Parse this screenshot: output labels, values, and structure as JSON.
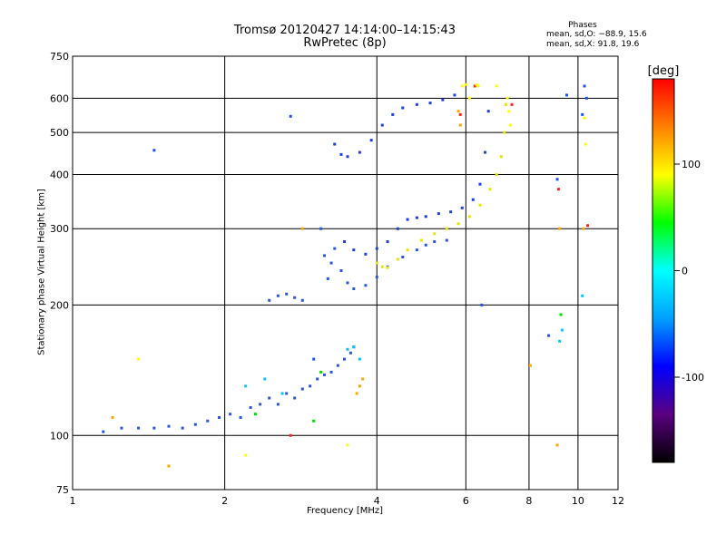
{
  "header": {
    "title_line1": "Tromsø 20120427 14:14:00–14:15:43",
    "title_line2": "RwPretec (8p)"
  },
  "phases": {
    "heading": "Phases",
    "line1": "mean, sd,O: −88.9, 15.6",
    "line2": "mean, sd,X:  91.8, 19.6"
  },
  "chart_data": {
    "type": "scatter",
    "title": "Tromsø 20120427 14:14:00–14:15:43",
    "subtitle": "RwPretec (8p)",
    "xlabel": "Frequency [MHz]",
    "ylabel": "Stationary phase Virtual Height [km]",
    "x_scale": "log",
    "y_scale": "log",
    "xlim": [
      1,
      12
    ],
    "ylim": [
      75,
      750
    ],
    "x_ticks": [
      1,
      2,
      4,
      6,
      8,
      10,
      12
    ],
    "y_ticks": [
      75,
      100,
      200,
      300,
      400,
      500,
      600,
      750
    ],
    "grid": true,
    "colorbar": {
      "label": "[deg]",
      "range": [
        -180,
        180
      ],
      "ticks": [
        100,
        0,
        -100
      ],
      "colors": [
        "#000000",
        "#5a0080",
        "#0000ff",
        "#00a0ff",
        "#00ffff",
        "#00ff00",
        "#ffff00",
        "#ff8000",
        "#ff0000"
      ]
    },
    "series": [
      {
        "color": "#2b55e0",
        "x": [
          1.15,
          1.25,
          1.35,
          1.45,
          1.55,
          1.65,
          1.75,
          1.85,
          1.95,
          2.05,
          2.15,
          2.25,
          2.35,
          2.45,
          2.55,
          2.65,
          2.75,
          2.85,
          2.95,
          3.05,
          3.15,
          3.25,
          3.35,
          3.45,
          3.55
        ],
        "y": [
          102,
          104,
          104,
          104,
          105,
          104,
          106,
          108,
          110,
          112,
          110,
          116,
          118,
          122,
          118,
          125,
          122,
          128,
          130,
          135,
          138,
          140,
          145,
          150,
          155
        ]
      },
      {
        "color": "#2b55e0",
        "x": [
          2.45,
          2.55,
          2.65,
          2.75,
          2.85,
          3.1,
          3.15,
          3.2,
          3.25,
          3.3,
          3.4,
          3.5,
          3.6,
          3.8,
          4.0,
          4.2,
          4.5,
          4.8,
          5.0,
          5.2,
          5.5
        ],
        "y": [
          205,
          210,
          212,
          208,
          205,
          300,
          260,
          230,
          250,
          270,
          240,
          225,
          218,
          222,
          232,
          245,
          258,
          268,
          275,
          280,
          282
        ]
      },
      {
        "color": "#1e3fdc",
        "x": [
          3.45,
          3.6,
          3.8,
          4.0,
          4.2,
          4.4,
          4.6,
          4.8,
          5.0,
          5.3,
          5.6,
          5.9,
          6.2,
          6.4,
          6.55,
          6.65
        ],
        "y": [
          280,
          268,
          262,
          270,
          280,
          300,
          315,
          318,
          320,
          325,
          328,
          335,
          350,
          380,
          450,
          560
        ]
      },
      {
        "color": "#e6e600",
        "x": [
          4.0,
          4.1,
          4.2,
          4.4,
          4.6,
          4.9,
          5.2,
          5.5,
          5.8,
          6.1,
          6.4,
          6.7,
          6.9,
          7.05,
          7.15,
          7.2
        ],
        "y": [
          250,
          245,
          244,
          255,
          268,
          282,
          292,
          300,
          308,
          320,
          340,
          370,
          400,
          440,
          500,
          580
        ]
      },
      {
        "color": "#1e3fdc",
        "x": [
          3.3,
          3.4,
          3.5,
          3.7,
          3.9,
          4.1,
          4.3,
          4.5,
          4.8,
          5.1,
          5.4,
          5.7
        ],
        "y": [
          470,
          445,
          440,
          450,
          480,
          520,
          550,
          570,
          580,
          585,
          595,
          610
        ]
      },
      {
        "color": "#1e50ff",
        "x": [
          1.45,
          2.7,
          6.45,
          9.1,
          9.5,
          10.3,
          10.4,
          10.2,
          8.75,
          3.0,
          3.6
        ],
        "y": [
          455,
          545,
          200,
          390,
          610,
          640,
          600,
          550,
          170,
          150,
          160
        ]
      },
      {
        "color": "#00c8ff",
        "x": [
          3.5,
          3.6,
          3.7,
          9.2,
          9.3,
          10.2,
          2.2,
          2.4,
          2.6
        ],
        "y": [
          158,
          160,
          150,
          165,
          175,
          210,
          130,
          135,
          125
        ]
      },
      {
        "color": "#ffa500",
        "x": [
          3.65,
          3.7,
          3.75,
          5.8,
          5.85,
          9.1,
          9.2,
          10.25,
          1.2,
          1.55,
          2.85,
          8.05
        ],
        "y": [
          125,
          130,
          135,
          560,
          520,
          95,
          300,
          300,
          110,
          85,
          300,
          145
        ]
      },
      {
        "color": "#ff2020",
        "x": [
          5.85,
          6.25,
          7.4,
          9.15,
          10.45,
          2.7
        ],
        "y": [
          550,
          640,
          580,
          370,
          305,
          100
        ]
      },
      {
        "color": "#ffff00",
        "x": [
          6.3,
          6.35,
          6.9,
          7.25,
          7.3,
          7.35,
          1.35,
          2.2,
          3.5,
          5.9,
          6.0,
          6.1,
          10.3,
          10.35
        ],
        "y": [
          645,
          640,
          640,
          600,
          560,
          520,
          150,
          90,
          95,
          640,
          645,
          600,
          540,
          470
        ]
      },
      {
        "color": "#00dc00",
        "x": [
          3.0,
          3.1,
          2.3,
          9.25
        ],
        "y": [
          108,
          140,
          112,
          190
        ]
      }
    ]
  }
}
